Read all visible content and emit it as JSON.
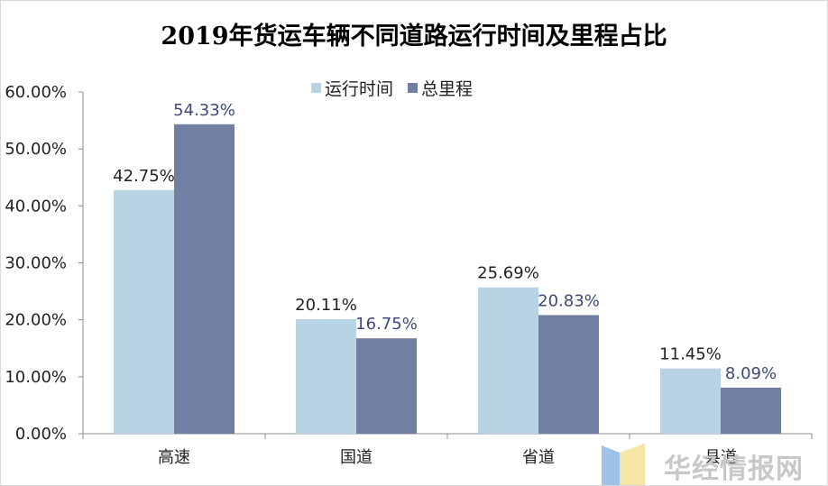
{
  "chart_data": {
    "type": "bar",
    "title": "2019年货运车辆不同道路运行时间及里程占比",
    "categories": [
      "高速",
      "国道",
      "省道",
      "县道"
    ],
    "series": [
      {
        "name": "运行时间",
        "values": [
          42.75,
          20.11,
          25.69,
          11.45
        ],
        "labels": [
          "42.75%",
          "20.11%",
          "25.69%",
          "11.45%"
        ],
        "color": "#b8d3e4"
      },
      {
        "name": "总里程",
        "values": [
          54.33,
          16.75,
          20.83,
          8.09
        ],
        "labels": [
          "54.33%",
          "16.75%",
          "20.83%",
          "8.09%"
        ],
        "color": "#717fa3"
      }
    ],
    "ylim": [
      0,
      60
    ],
    "yticks": [
      0,
      10,
      20,
      30,
      40,
      50,
      60
    ],
    "ytick_labels": [
      "0.00%",
      "10.00%",
      "20.00%",
      "30.00%",
      "40.00%",
      "50.00%",
      "60.00%"
    ],
    "grid": false,
    "legend_position": "top-center"
  },
  "watermark": {
    "text": "华经情报网",
    "logo_colors": [
      "#9ec3ea",
      "#f7e5a6"
    ]
  }
}
